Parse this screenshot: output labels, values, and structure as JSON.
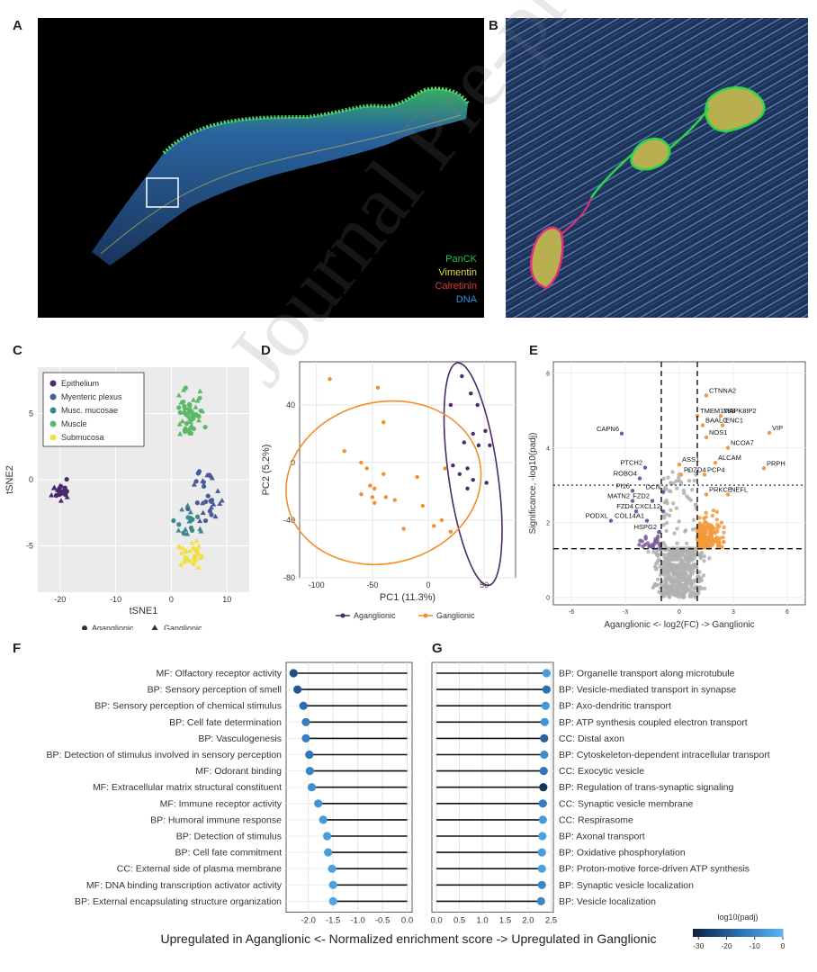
{
  "panels": {
    "A": {
      "letter": "A",
      "stains": [
        {
          "label": "PanCK",
          "color": "#22c24a"
        },
        {
          "label": "Vimentin",
          "color": "#e8d84a"
        },
        {
          "label": "Calretinin",
          "color": "#e03a3a"
        },
        {
          "label": "DNA",
          "color": "#2a8fe0"
        }
      ]
    },
    "B": {
      "letter": "B"
    },
    "C": {
      "letter": "C"
    },
    "D": {
      "letter": "D"
    },
    "E": {
      "letter": "E"
    },
    "F": {
      "letter": "F"
    },
    "G": {
      "letter": "G"
    }
  },
  "watermark": "Journal Pre-proof",
  "bottom_caption": "Upregulated in Aganglionic <- Normalized enrichment score -> Upregulated in Ganglionic",
  "chart_data": [
    {
      "id": "C",
      "type": "scatter",
      "xlabel": "tSNE1",
      "ylabel": "tSNE2",
      "xlim": [
        -24,
        14
      ],
      "ylim": [
        -8.5,
        8.5
      ],
      "xticks": [
        -20,
        -10,
        0,
        10
      ],
      "yticks": [
        -5,
        0,
        5
      ],
      "legend_title": "",
      "legend": [
        {
          "name": "Epithelium",
          "color": "#4b2a6b"
        },
        {
          "name": "Myenteric plexus",
          "color": "#4a5a96"
        },
        {
          "name": "Musc. mucosae",
          "color": "#3a8a8c"
        },
        {
          "name": "Muscle",
          "color": "#5db86a"
        },
        {
          "name": "Submucosa",
          "color": "#f2e040"
        }
      ],
      "shape_legend": [
        {
          "name": "Aganglionic",
          "shape": "circle"
        },
        {
          "name": "Ganglionic",
          "shape": "triangle"
        }
      ],
      "clusters": [
        {
          "name": "Epithelium",
          "cx": -19.5,
          "cy": -0.8,
          "sx": 1.6,
          "sy": 0.6,
          "n": 26
        },
        {
          "name": "Muscle",
          "cx": 3.6,
          "cy": 5.0,
          "sx": 1.9,
          "sy": 1.6,
          "n": 55
        },
        {
          "name": "Myenteric plexus",
          "cx": 6.5,
          "cy": -1.2,
          "sx": 3.4,
          "sy": 1.6,
          "n": 30
        },
        {
          "name": "Musc. mucosae",
          "cx": 3.0,
          "cy": -3.2,
          "sx": 2.4,
          "sy": 1.2,
          "n": 20
        },
        {
          "name": "Submucosa",
          "cx": 3.8,
          "cy": -5.8,
          "sx": 1.8,
          "sy": 0.9,
          "n": 30
        }
      ]
    },
    {
      "id": "D",
      "type": "scatter",
      "xlabel": "PC1 (11.3%)",
      "ylabel": "PC2 (5.2%)",
      "xlim": [
        -115,
        78
      ],
      "ylim": [
        -80,
        70
      ],
      "xticks": [
        -100,
        -50,
        0,
        50
      ],
      "yticks": [
        40,
        0,
        -40,
        -80
      ],
      "series": [
        {
          "name": "Aganglionic",
          "color": "#4b2a6b",
          "points": [
            [
              30,
              60
            ],
            [
              38,
              48
            ],
            [
              20,
              40
            ],
            [
              44,
              40
            ],
            [
              40,
              20
            ],
            [
              51,
              22
            ],
            [
              32,
              14
            ],
            [
              45,
              12
            ],
            [
              55,
              12
            ],
            [
              22,
              -2
            ],
            [
              35,
              -4
            ],
            [
              28,
              -8
            ],
            [
              40,
              -12
            ],
            [
              52,
              -14
            ],
            [
              35,
              -18
            ]
          ],
          "ellipse": {
            "cx": 40,
            "cy": -8,
            "rx": 22,
            "ry": 78,
            "rot": -8
          }
        },
        {
          "name": "Ganglionic",
          "color": "#f28e2b",
          "points": [
            [
              -88,
              58
            ],
            [
              -45,
              52
            ],
            [
              -40,
              28
            ],
            [
              -75,
              8
            ],
            [
              -60,
              0
            ],
            [
              -55,
              -4
            ],
            [
              -40,
              -8
            ],
            [
              -48,
              -18
            ],
            [
              -60,
              -22
            ],
            [
              -50,
              -24
            ],
            [
              -48,
              -28
            ],
            [
              -30,
              -26
            ],
            [
              -10,
              -10
            ],
            [
              15,
              -4
            ],
            [
              -5,
              -30
            ],
            [
              -22,
              -46
            ],
            [
              12,
              -40
            ],
            [
              5,
              -44
            ],
            [
              20,
              -48
            ],
            [
              -38,
              -24
            ],
            [
              -52,
              -16
            ]
          ],
          "ellipse": {
            "cx": -40,
            "cy": -14,
            "rx": 88,
            "ry": 56,
            "rot": -14
          }
        }
      ]
    },
    {
      "id": "E",
      "type": "scatter",
      "xlabel": "Aganglionic <- log2(FC) -> Ganglionic",
      "ylabel": "Significance, -log10(padj)",
      "xlim": [
        -7,
        7
      ],
      "ylim": [
        -0.2,
        6.3
      ],
      "xticks": [
        -6,
        -3,
        0,
        3,
        6
      ],
      "yticks": [
        0,
        2,
        4,
        6
      ],
      "thresholds": {
        "x": [
          -1,
          1
        ],
        "y_dash": 1.3,
        "y_dot": 3
      },
      "colors": {
        "ns": "#b0b0b0",
        "up": "#f29a3c",
        "down": "#7a5a9a"
      },
      "labels": [
        {
          "text": "CTNNA2",
          "x": 1.5,
          "y": 5.4
        },
        {
          "text": "TMEM178B",
          "x": 1.0,
          "y": 4.85
        },
        {
          "text": "MAPK8IP2",
          "x": 2.3,
          "y": 4.85
        },
        {
          "text": "BAALC",
          "x": 1.3,
          "y": 4.6
        },
        {
          "text": "ENC1",
          "x": 2.4,
          "y": 4.6
        },
        {
          "text": "NOS1",
          "x": 1.5,
          "y": 4.28
        },
        {
          "text": "CAPN6",
          "x": -3.2,
          "y": 4.38
        },
        {
          "text": "VIP",
          "x": 5.0,
          "y": 4.4
        },
        {
          "text": "NCOA7",
          "x": 2.7,
          "y": 4.0
        },
        {
          "text": "ALCAM",
          "x": 2.0,
          "y": 3.6
        },
        {
          "text": "PTCH2",
          "x": -1.9,
          "y": 3.47
        },
        {
          "text": "ASS1",
          "x": 0.0,
          "y": 3.55
        },
        {
          "text": "PRPH",
          "x": 4.7,
          "y": 3.45
        },
        {
          "text": "ROBO4",
          "x": -2.2,
          "y": 3.18
        },
        {
          "text": "PDZD4",
          "x": 0.1,
          "y": 3.28
        },
        {
          "text": "PCP4",
          "x": 1.4,
          "y": 3.28
        },
        {
          "text": "PI16",
          "x": -2.6,
          "y": 2.85
        },
        {
          "text": "DCN",
          "x": -0.9,
          "y": 2.82
        },
        {
          "text": "PRKCE",
          "x": 1.5,
          "y": 2.75
        },
        {
          "text": "NEFL",
          "x": 2.7,
          "y": 2.75
        },
        {
          "text": "MATN2",
          "x": -2.6,
          "y": 2.58
        },
        {
          "text": "FZD2",
          "x": -1.5,
          "y": 2.58
        },
        {
          "text": "FZD4",
          "x": -2.4,
          "y": 2.3
        },
        {
          "text": "CXCL12",
          "x": -0.9,
          "y": 2.3
        },
        {
          "text": "PODXL",
          "x": -3.8,
          "y": 2.05
        },
        {
          "text": "COL14A1",
          "x": -1.8,
          "y": 2.05
        },
        {
          "text": "HSPG2",
          "x": -1.1,
          "y": 1.75
        }
      ]
    },
    {
      "id": "F",
      "type": "lollipop",
      "xlim": [
        -2.45,
        0.1
      ],
      "xticks": [
        -2.0,
        -1.5,
        -1.0,
        -0.5,
        0.0
      ],
      "xticklabels": [
        "-2.0",
        "-1.5",
        "-1.0",
        "-0.5",
        "0.0"
      ],
      "terms": [
        {
          "label": "MF: Olfactory receptor activity",
          "nes": -2.3,
          "p": -22
        },
        {
          "label": "BP: Sensory perception of smell",
          "nes": -2.22,
          "p": -20
        },
        {
          "label": "BP: Sensory perception of chemical stimulus",
          "nes": -2.1,
          "p": -16
        },
        {
          "label": "BP: Cell fate determination",
          "nes": -2.05,
          "p": -12
        },
        {
          "label": "BP: Vasculogenesis",
          "nes": -2.05,
          "p": -12
        },
        {
          "label": "BP: Detection of stimulus involved in sensory perception",
          "nes": -1.98,
          "p": -14
        },
        {
          "label": "MF: Odorant binding",
          "nes": -1.97,
          "p": -10
        },
        {
          "label": "MF: Extracellular matrix structural constituent",
          "nes": -1.93,
          "p": -8
        },
        {
          "label": "MF: Immune receptor activity",
          "nes": -1.8,
          "p": -7
        },
        {
          "label": "BP: Humoral immune response",
          "nes": -1.7,
          "p": -6
        },
        {
          "label": "BP: Detection of stimulus",
          "nes": -1.62,
          "p": -5
        },
        {
          "label": "BP: Cell fate commitment",
          "nes": -1.6,
          "p": -5
        },
        {
          "label": "CC: External side of plasma membrane",
          "nes": -1.52,
          "p": -4
        },
        {
          "label": "MF: DNA binding transcription activator activity",
          "nes": -1.5,
          "p": -4
        },
        {
          "label": "BP: External encapsulating structure organization",
          "nes": -1.5,
          "p": -3
        }
      ]
    },
    {
      "id": "G",
      "type": "lollipop",
      "xlim": [
        -0.1,
        2.55
      ],
      "xticks": [
        0.0,
        0.5,
        1.0,
        1.5,
        2.0,
        2.5
      ],
      "xticklabels": [
        "0.0",
        "0.5",
        "1.0",
        "1.5",
        "2.0",
        "2.5"
      ],
      "terms": [
        {
          "label": "BP: Organelle transport along microtubule",
          "nes": 2.4,
          "p": -5
        },
        {
          "label": "BP: Vesicle-mediated transport in synapse",
          "nes": 2.4,
          "p": -15
        },
        {
          "label": "BP: Axo-dendritic transport",
          "nes": 2.38,
          "p": -6
        },
        {
          "label": "BP: ATP synthesis coupled electron transport",
          "nes": 2.36,
          "p": -7
        },
        {
          "label": "CC: Distal axon",
          "nes": 2.35,
          "p": -18
        },
        {
          "label": "BP: Cytoskeleton-dependent intracellular transport",
          "nes": 2.35,
          "p": -9
        },
        {
          "label": "CC: Exocytic vesicle",
          "nes": 2.34,
          "p": -14
        },
        {
          "label": "BP: Regulation of trans-synaptic signaling",
          "nes": 2.33,
          "p": -28
        },
        {
          "label": "CC: Synaptic vesicle membrane",
          "nes": 2.32,
          "p": -12
        },
        {
          "label": "CC: Respirasome",
          "nes": 2.32,
          "p": -6
        },
        {
          "label": "BP: Axonal transport",
          "nes": 2.31,
          "p": -4
        },
        {
          "label": "BP: Oxidative phosphorylation",
          "nes": 2.3,
          "p": -5
        },
        {
          "label": "BP: Proton-motive force-driven ATP synthesis",
          "nes": 2.3,
          "p": -4
        },
        {
          "label": "BP: Synaptic vesicle localization",
          "nes": 2.3,
          "p": -10
        },
        {
          "label": "BP: Vesicle localization",
          "nes": 2.28,
          "p": -10
        }
      ]
    },
    {
      "id": "colorbar",
      "type": "heatmap",
      "title": "log10(padj)",
      "range": [
        -32,
        0
      ],
      "ticks": [
        -30,
        -20,
        -10,
        0
      ],
      "colors": [
        "#0c2340",
        "#2a6db0",
        "#56b4f0"
      ]
    }
  ]
}
